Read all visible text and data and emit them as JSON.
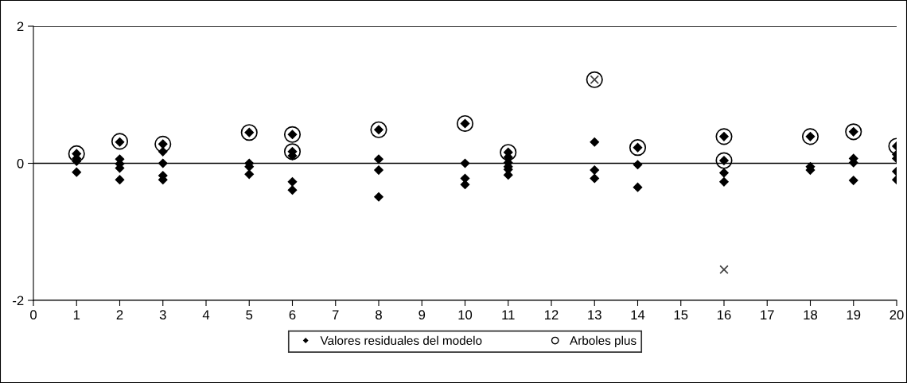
{
  "chart_data": {
    "type": "scatter",
    "xlim": [
      0,
      20
    ],
    "xticks": [
      0,
      1,
      2,
      3,
      4,
      5,
      6,
      7,
      8,
      9,
      10,
      11,
      12,
      13,
      14,
      15,
      16,
      17,
      18,
      19,
      20
    ],
    "ylim": [
      -2,
      2
    ],
    "yticks": [
      -2,
      0,
      2
    ],
    "grid": "y",
    "legend": "bottom",
    "series": [
      {
        "name": "Valores residuales del modelo",
        "color": "#000000",
        "marker": "diamond",
        "x": [
          1,
          1,
          1,
          1,
          2,
          2,
          2,
          2,
          2,
          3,
          3,
          3,
          3,
          3,
          5,
          5,
          5,
          5,
          6,
          6,
          6,
          6,
          6,
          8,
          8,
          8,
          8,
          10,
          10,
          10,
          10,
          11,
          11,
          11,
          11,
          11,
          11,
          13,
          13,
          13,
          14,
          14,
          14,
          16,
          16,
          16,
          16,
          18,
          18,
          18,
          19,
          19,
          19,
          19,
          20,
          20,
          20,
          20,
          20
        ],
        "values": [
          0.14,
          0.07,
          0.03,
          -0.13,
          0.31,
          0.06,
          -0.01,
          -0.07,
          -0.24,
          0.28,
          0.17,
          0,
          -0.18,
          -0.24,
          0.45,
          0,
          -0.05,
          -0.16,
          0.42,
          0.17,
          0.11,
          -0.27,
          -0.39,
          0.49,
          0.06,
          -0.1,
          -0.49,
          0.58,
          0,
          -0.22,
          -0.31,
          0.16,
          0.09,
          0.01,
          -0.05,
          -0.09,
          -0.17,
          0.31,
          -0.1,
          -0.22,
          0.23,
          -0.02,
          -0.35,
          0.39,
          0.04,
          -0.14,
          -0.27,
          0.39,
          -0.05,
          -0.1,
          0.46,
          0.07,
          0.01,
          -0.25,
          0.25,
          0.13,
          0.07,
          -0.12,
          -0.24
        ]
      },
      {
        "name": "Arboles plus",
        "color": "#000000",
        "marker": "circle",
        "x": [
          1,
          2,
          3,
          5,
          6,
          6,
          8,
          10,
          11,
          13,
          14,
          16,
          16,
          18,
          19,
          20
        ],
        "values": [
          0.14,
          0.32,
          0.28,
          0.45,
          0.42,
          0.17,
          0.49,
          0.58,
          0.16,
          1.22,
          0.23,
          0.39,
          0.04,
          0.39,
          0.46,
          0.25
        ]
      },
      {
        "color": "#404040",
        "marker": "cross",
        "x": [
          13,
          16
        ],
        "values": [
          1.22,
          -1.55
        ]
      }
    ]
  }
}
